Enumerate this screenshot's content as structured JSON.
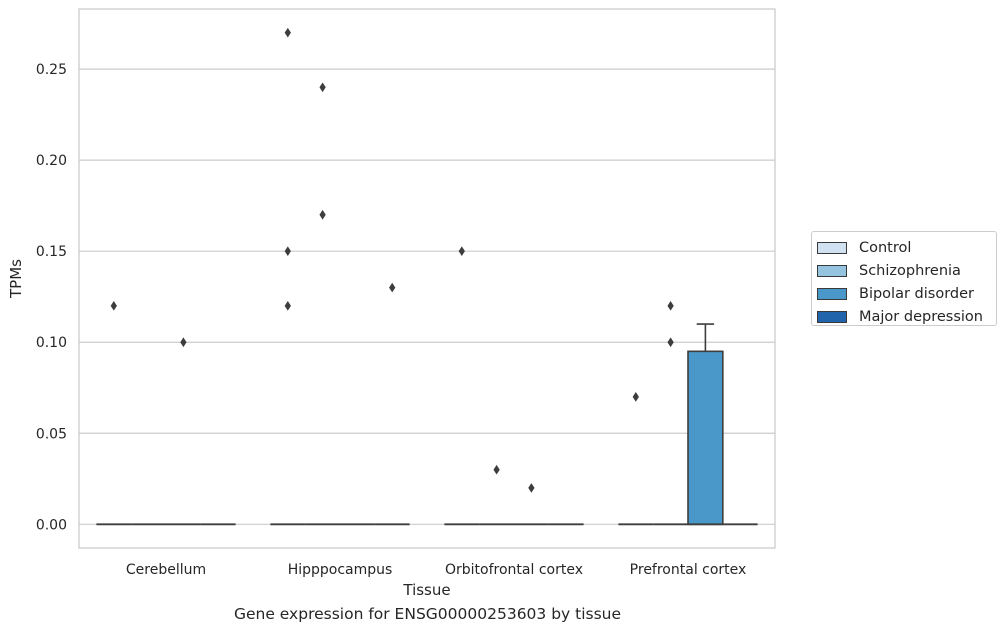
{
  "chart_data": {
    "type": "box",
    "title": "Gene expression for ENSG00000253603 by tissue",
    "xlabel": "Tissue",
    "ylabel": "TPMs",
    "ylim": [
      -0.013,
      0.283
    ],
    "yticks": [
      "0.00",
      "0.05",
      "0.10",
      "0.15",
      "0.20",
      "0.25"
    ],
    "ytick_values": [
      0,
      0.05,
      0.1,
      0.15,
      0.2,
      0.25
    ],
    "grid": true,
    "legend_position": "right",
    "categories": [
      "Cerebellum",
      "Hipppocampus",
      "Orbitofrontal cortex",
      "Prefrontal cortex"
    ],
    "series": [
      {
        "name": "Control",
        "color": "#d0e1f2",
        "boxes": [
          {
            "q1": 0,
            "median": 0,
            "q3": 0,
            "whisker_low": 0,
            "whisker_high": 0,
            "outliers": [
              0.12
            ]
          },
          {
            "q1": 0,
            "median": 0,
            "q3": 0,
            "whisker_low": 0,
            "whisker_high": 0,
            "outliers": [
              0.27,
              0.15,
              0.12
            ]
          },
          {
            "q1": 0,
            "median": 0,
            "q3": 0,
            "whisker_low": 0,
            "whisker_high": 0,
            "outliers": [
              0.15
            ]
          },
          {
            "q1": 0,
            "median": 0,
            "q3": 0,
            "whisker_low": 0,
            "whisker_high": 0,
            "outliers": [
              0.07
            ]
          }
        ]
      },
      {
        "name": "Schizophrenia",
        "color": "#94c4df",
        "boxes": [
          {
            "q1": 0,
            "median": 0,
            "q3": 0,
            "whisker_low": 0,
            "whisker_high": 0,
            "outliers": []
          },
          {
            "q1": 0,
            "median": 0,
            "q3": 0,
            "whisker_low": 0,
            "whisker_high": 0,
            "outliers": [
              0.24,
              0.17
            ]
          },
          {
            "q1": 0,
            "median": 0,
            "q3": 0,
            "whisker_low": 0,
            "whisker_high": 0,
            "outliers": [
              0.03
            ]
          },
          {
            "q1": 0,
            "median": 0,
            "q3": 0,
            "whisker_low": 0,
            "whisker_high": 0,
            "outliers": [
              0.12,
              0.1
            ]
          }
        ]
      },
      {
        "name": "Bipolar disorder",
        "color": "#4a98c9",
        "boxes": [
          {
            "q1": 0,
            "median": 0,
            "q3": 0,
            "whisker_low": 0,
            "whisker_high": 0,
            "outliers": [
              0.1
            ]
          },
          {
            "q1": 0,
            "median": 0,
            "q3": 0,
            "whisker_low": 0,
            "whisker_high": 0,
            "outliers": []
          },
          {
            "q1": 0,
            "median": 0,
            "q3": 0,
            "whisker_low": 0,
            "whisker_high": 0,
            "outliers": [
              0.02
            ]
          },
          {
            "q1": 0,
            "median": 0,
            "q3": 0.095,
            "whisker_low": 0,
            "whisker_high": 0.11,
            "outliers": []
          }
        ]
      },
      {
        "name": "Major depression",
        "color": "#2164ab",
        "boxes": [
          {
            "q1": 0,
            "median": 0,
            "q3": 0,
            "whisker_low": 0,
            "whisker_high": 0,
            "outliers": []
          },
          {
            "q1": 0,
            "median": 0,
            "q3": 0,
            "whisker_low": 0,
            "whisker_high": 0,
            "outliers": [
              0.13
            ]
          },
          {
            "q1": 0,
            "median": 0,
            "q3": 0,
            "whisker_low": 0,
            "whisker_high": 0,
            "outliers": []
          },
          {
            "q1": 0,
            "median": 0,
            "q3": 0,
            "whisker_low": 0,
            "whisker_high": 0,
            "outliers": []
          }
        ]
      }
    ]
  }
}
